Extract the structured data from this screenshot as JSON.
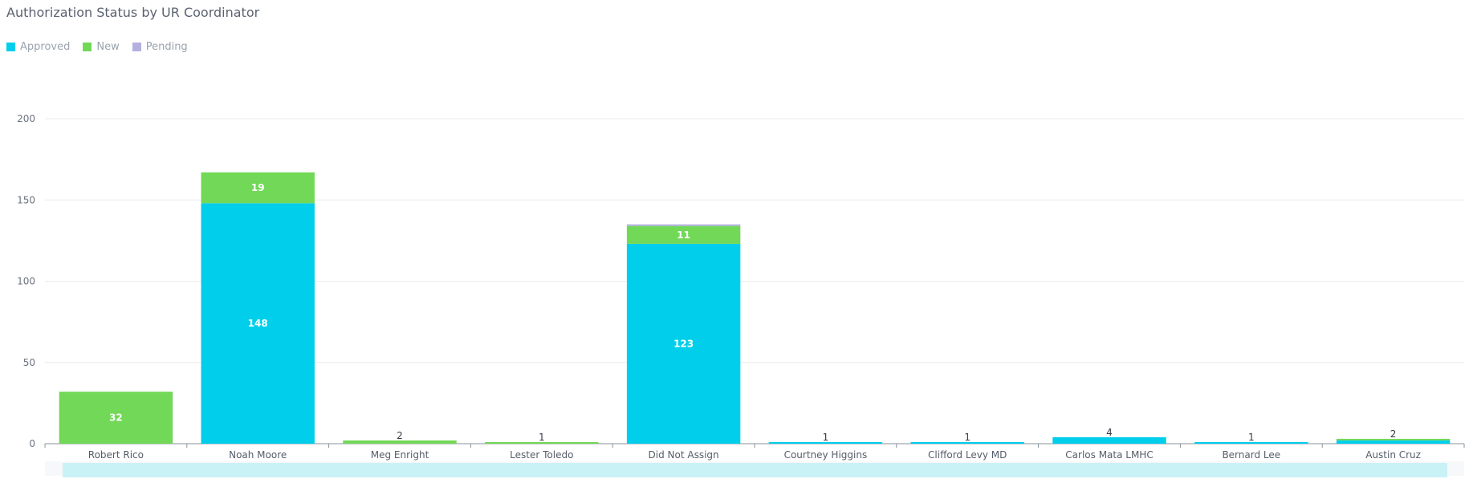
{
  "chart_data": {
    "type": "bar",
    "stacked": true,
    "title": "Authorization Status by UR Coordinator",
    "categories": [
      "Robert Rico",
      "Noah Moore",
      "Meg Enright",
      "Lester Toledo",
      "Did Not Assign",
      "Courtney Higgins",
      "Clifford Levy MD",
      "Carlos Mata LMHC",
      "Bernard Lee",
      "Austin Cruz"
    ],
    "series": [
      {
        "name": "Approved",
        "color": "#00ceea",
        "values": [
          0,
          148,
          0,
          0,
          123,
          1,
          1,
          4,
          1,
          2
        ]
      },
      {
        "name": "New",
        "color": "#72d857",
        "values": [
          32,
          19,
          2,
          1,
          11,
          0,
          0,
          0,
          0,
          1
        ]
      },
      {
        "name": "Pending",
        "color": "#b3b0e0",
        "values": [
          0,
          0,
          0,
          0,
          1,
          0,
          0,
          0,
          0,
          0
        ]
      }
    ],
    "data_labels": [
      {
        "category": "Robert Rico",
        "series": "New",
        "text": "32"
      },
      {
        "category": "Noah Moore",
        "series": "Approved",
        "text": "148"
      },
      {
        "category": "Noah Moore",
        "series": "New",
        "text": "19"
      },
      {
        "category": "Meg Enright",
        "text": "2"
      },
      {
        "category": "Lester Toledo",
        "text": "1"
      },
      {
        "category": "Did Not Assign",
        "series": "Approved",
        "text": "123"
      },
      {
        "category": "Did Not Assign",
        "series": "New",
        "text": "11"
      },
      {
        "category": "Courtney Higgins",
        "text": "1"
      },
      {
        "category": "Clifford Levy MD",
        "text": "1"
      },
      {
        "category": "Carlos Mata LMHC",
        "text": "4"
      },
      {
        "category": "Bernard Lee",
        "text": "1"
      },
      {
        "category": "Austin Cruz",
        "text": "2"
      }
    ],
    "ylim": [
      0,
      200
    ],
    "yticks": [
      0,
      50,
      100,
      150,
      200
    ],
    "grid": true,
    "legend_position": "top-left",
    "xlabel": "",
    "ylabel": ""
  }
}
